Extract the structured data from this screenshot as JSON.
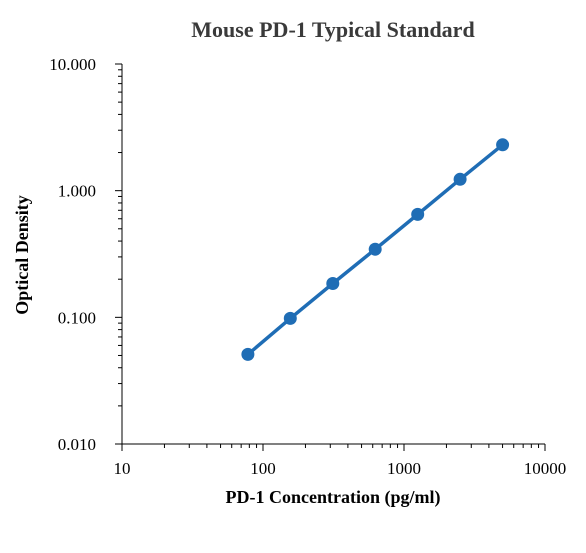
{
  "chart_data": {
    "type": "line",
    "title": "Mouse PD-1 Typical Standard",
    "xlabel": "PD-1 Concentration (pg/ml)",
    "ylabel": "Optical Density",
    "x_scale": "log",
    "y_scale": "log",
    "xlim": [
      10,
      10000
    ],
    "ylim": [
      0.01,
      10
    ],
    "x_ticks": [
      "10",
      "100",
      "1000",
      "10000"
    ],
    "y_ticks": [
      "0.010",
      "0.100",
      "1.000",
      "10.000"
    ],
    "grid": false,
    "legend": "none",
    "series": [
      {
        "color": "#1f6db5",
        "marker": "circle",
        "x": [
          78.125,
          156.25,
          312.5,
          625,
          1250,
          2500,
          5000
        ],
        "y": [
          0.051,
          0.098,
          0.185,
          0.345,
          0.65,
          1.23,
          2.3
        ]
      }
    ]
  }
}
